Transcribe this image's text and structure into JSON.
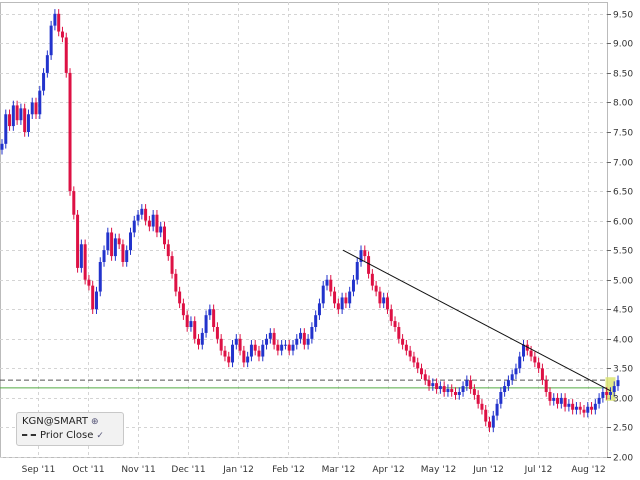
{
  "chart_data": {
    "type": "candlestick",
    "symbol_label": "KGN@SMART",
    "legend": [
      {
        "label": "Prior Close",
        "style": "dashed",
        "color": "#333333"
      }
    ],
    "x_tick_labels": [
      "Sep '11",
      "Oct '11",
      "Nov '11",
      "Dec '11",
      "Jan '12",
      "Feb '12",
      "Mar '12",
      "Apr '12",
      "May '12",
      "Jun '12",
      "Jul '12",
      "Aug '12"
    ],
    "y_tick_labels": [
      "2.00",
      "2.50",
      "3.00",
      "3.50",
      "4.00",
      "4.50",
      "5.00",
      "5.50",
      "6.00",
      "6.50",
      "7.00",
      "7.50",
      "8.00",
      "8.50",
      "9.00",
      "9.50"
    ],
    "ylim": [
      2.0,
      9.7
    ],
    "grid": true,
    "prior_close": 3.3,
    "support_level": 3.17,
    "colors": {
      "up": "#2233cc",
      "down": "#dd1144",
      "grid": "#d4d4d4",
      "trendline": "#111111",
      "support": "#55aa44",
      "highlight": "#d9e36a"
    },
    "trendline": {
      "start": {
        "x": 6.1,
        "y": 5.5
      },
      "end": {
        "x": 11.45,
        "y": 3.12
      }
    },
    "highlight_zone": {
      "x_start": 11.35,
      "x_end": 11.55,
      "y_low": 2.95,
      "y_high": 3.35
    },
    "closes": [
      7.3,
      7.8,
      7.6,
      7.95,
      7.7,
      7.9,
      7.5,
      7.8,
      8.0,
      7.8,
      8.2,
      8.5,
      8.8,
      9.3,
      9.5,
      9.2,
      9.1,
      8.5,
      6.5,
      6.1,
      5.2,
      5.6,
      5.0,
      4.9,
      4.5,
      4.8,
      5.3,
      5.5,
      5.8,
      5.4,
      5.7,
      5.6,
      5.3,
      5.5,
      5.8,
      6.0,
      6.1,
      6.2,
      6.0,
      5.9,
      6.1,
      5.8,
      5.9,
      5.6,
      5.4,
      5.1,
      4.8,
      4.6,
      4.4,
      4.2,
      4.3,
      4.0,
      3.9,
      4.1,
      4.4,
      4.5,
      4.2,
      4.0,
      3.8,
      3.7,
      3.6,
      3.9,
      4.0,
      3.8,
      3.6,
      3.7,
      3.9,
      3.8,
      3.7,
      3.9,
      4.0,
      4.1,
      3.9,
      3.8,
      3.9,
      3.9,
      3.8,
      3.9,
      4.0,
      4.1,
      3.9,
      4.0,
      4.2,
      4.4,
      4.6,
      4.9,
      5.0,
      4.8,
      4.6,
      4.5,
      4.7,
      4.6,
      4.8,
      5.0,
      5.3,
      5.5,
      5.4,
      5.1,
      4.9,
      4.8,
      4.6,
      4.7,
      4.5,
      4.3,
      4.2,
      4.0,
      3.9,
      3.8,
      3.7,
      3.6,
      3.5,
      3.4,
      3.3,
      3.2,
      3.25,
      3.15,
      3.2,
      3.1,
      3.15,
      3.1,
      3.05,
      3.1,
      3.2,
      3.3,
      3.15,
      3.05,
      2.9,
      2.8,
      2.6,
      2.5,
      2.7,
      2.9,
      3.1,
      3.2,
      3.3,
      3.4,
      3.5,
      3.7,
      3.9,
      3.8,
      3.7,
      3.6,
      3.5,
      3.3,
      3.1,
      2.95,
      3.0,
      2.9,
      3.0,
      2.85,
      2.9,
      2.8,
      2.85,
      2.8,
      2.75,
      2.85,
      2.8,
      2.9,
      3.0,
      3.1,
      3.05,
      3.1,
      3.2,
      3.3
    ]
  }
}
